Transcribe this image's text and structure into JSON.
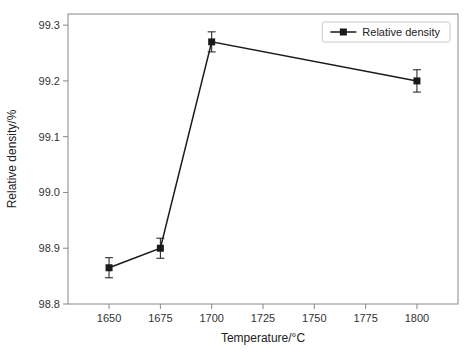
{
  "chart_data": {
    "type": "line",
    "x_label": "Temperature/°C",
    "y_label": "Relative density/%",
    "x": [
      1650,
      1675,
      1700,
      1800
    ],
    "series": [
      {
        "name": "Relative density",
        "color": "#1a1a1a",
        "marker": "square",
        "line_style": "solid",
        "values": [
          98.865,
          98.9,
          99.27,
          99.2
        ],
        "errors": [
          0.018,
          0.018,
          0.018,
          0.02
        ]
      }
    ],
    "xlim": [
      1630,
      1820
    ],
    "ylim": [
      98.8,
      99.32
    ],
    "xticks": [
      1650,
      1675,
      1700,
      1725,
      1750,
      1775,
      1800
    ],
    "yticks": [
      98.8,
      98.9,
      {
        "value": 99.0,
        "label": "99.0"
      },
      99.1,
      99.2,
      99.3
    ],
    "grid": false,
    "legend": "upper right"
  }
}
